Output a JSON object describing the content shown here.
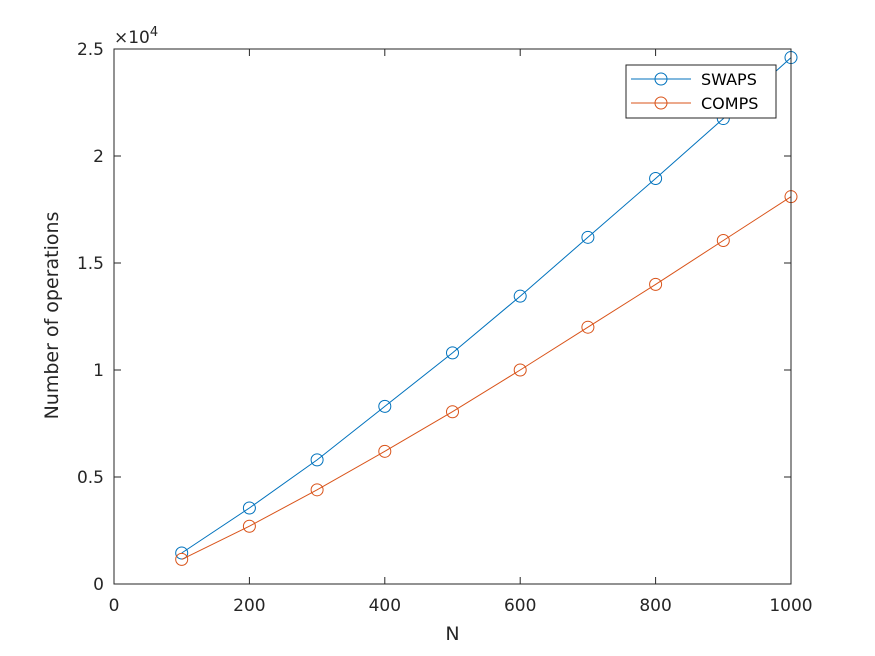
{
  "chart_data": {
    "type": "line",
    "title": "",
    "xlabel": "N",
    "ylabel": "Number of operations",
    "xlim": [
      0,
      1000
    ],
    "ylim": [
      0,
      25000
    ],
    "xticks": [
      0,
      200,
      400,
      600,
      800,
      1000
    ],
    "xtick_labels": [
      "0",
      "200",
      "400",
      "600",
      "800",
      "1000"
    ],
    "yticks": [
      0,
      5000,
      10000,
      15000,
      20000,
      25000
    ],
    "ytick_labels": [
      "0",
      "0.5",
      "1",
      "1.5",
      "2",
      "2.5"
    ],
    "y_multiplier_base": "×10",
    "y_multiplier_exp": "4",
    "grid": false,
    "legend_position": "top-right",
    "x": [
      100,
      200,
      300,
      400,
      500,
      600,
      700,
      800,
      900,
      1000
    ],
    "series": [
      {
        "name": "SWAPS",
        "color": "#0072BD",
        "marker": "circle",
        "values": [
          1450,
          3550,
          5800,
          8300,
          10800,
          13450,
          16200,
          18950,
          21750,
          24600
        ]
      },
      {
        "name": "COMPS",
        "color": "#D95319",
        "marker": "circle",
        "values": [
          1150,
          2700,
          4400,
          6200,
          8050,
          10000,
          12000,
          14000,
          16050,
          18100
        ]
      }
    ]
  }
}
